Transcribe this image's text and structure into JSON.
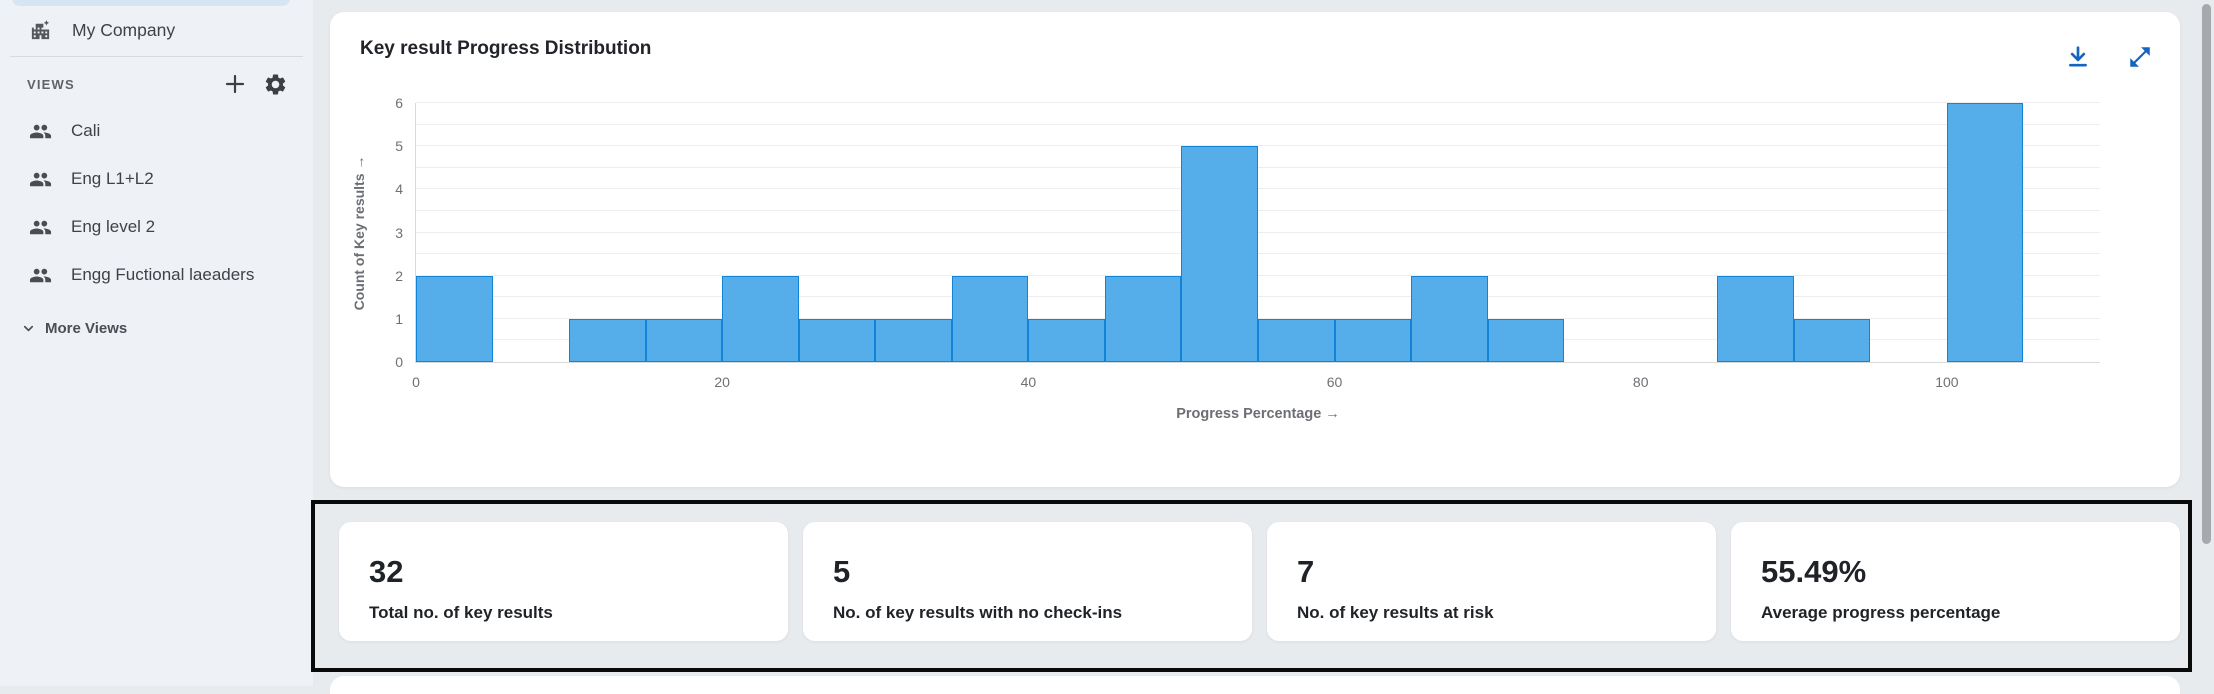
{
  "sidebar": {
    "company": {
      "label": "My Company"
    },
    "views_header": {
      "label": "VIEWS"
    },
    "views": [
      {
        "label": "Cali"
      },
      {
        "label": "Eng L1+L2"
      },
      {
        "label": "Eng level 2"
      },
      {
        "label": "Engg Fuctional laeaders"
      }
    ],
    "more_views": {
      "label": "More Views"
    }
  },
  "chart_card": {
    "title": "Key result Progress Distribution"
  },
  "chart_data": {
    "type": "bar",
    "title": "Key result Progress Distribution",
    "xlabel": "Progress Percentage →",
    "ylabel": "Count of Key results →",
    "bin_start": 0,
    "bin_width": 5,
    "values": [
      2,
      0,
      1,
      1,
      2,
      1,
      1,
      2,
      1,
      2,
      5,
      1,
      1,
      2,
      1,
      0,
      0,
      2,
      1,
      0,
      6
    ],
    "xticks": [
      0,
      20,
      40,
      60,
      80,
      100
    ],
    "yticks": [
      0,
      1,
      2,
      3,
      4,
      5,
      6
    ],
    "xlim": [
      0,
      110
    ],
    "ylim": [
      0,
      6
    ],
    "gridline_step": 0.5,
    "grid": true,
    "legend": false
  },
  "stats": [
    {
      "value": "32",
      "label": "Total no. of key results"
    },
    {
      "value": "5",
      "label": "No. of key results with no check-ins"
    },
    {
      "value": "7",
      "label": "No. of key results at risk"
    },
    {
      "value": "55.49%",
      "label": "Average progress percentage"
    }
  ],
  "icons": {
    "company": "building-icon",
    "add_view": "plus-icon",
    "view_settings": "gear-icon",
    "view_item": "group-icon",
    "more_views": "chevron-down-icon",
    "chart_download": "download-icon",
    "chart_expand": "expand-icon"
  },
  "colors": {
    "bar_fill": "#55aeea",
    "bar_stroke": "#1184d8",
    "accent_blue": "#1565c0",
    "sidebar_bg": "#eef2f7",
    "page_bg": "#e8ebee",
    "highlight_border": "#0a0a0a"
  }
}
